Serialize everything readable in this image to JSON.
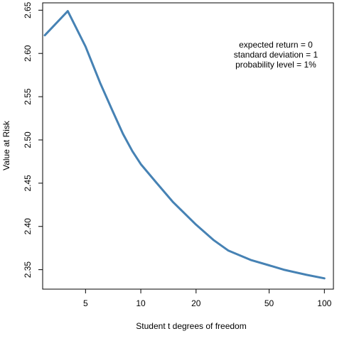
{
  "chart_data": {
    "type": "line",
    "title": "",
    "xlabel": "Student t degrees of freedom",
    "ylabel": "Value at Risk",
    "x_scale": "log",
    "xlim": [
      2.92,
      112
    ],
    "ylim": [
      2.3275,
      2.6585
    ],
    "x_ticks": [
      5,
      10,
      20,
      50,
      100
    ],
    "x_tick_labels": [
      "5",
      "10",
      "20",
      "50",
      "100"
    ],
    "y_ticks": [
      2.35,
      2.4,
      2.45,
      2.5,
      2.55,
      2.6,
      2.65
    ],
    "y_tick_labels": [
      "2.35",
      "2.40",
      "2.45",
      "2.50",
      "2.55",
      "2.60",
      "2.65"
    ],
    "grid": false,
    "line_color": "#4682b4",
    "series": [
      {
        "x": [
          3,
          4,
          5,
          6,
          7,
          8,
          9,
          10,
          12,
          15,
          20,
          25,
          30,
          40,
          50,
          60,
          80,
          100
        ],
        "y": [
          2.621,
          2.649,
          2.608,
          2.566,
          2.534,
          2.507,
          2.487,
          2.472,
          2.452,
          2.428,
          2.402,
          2.384,
          2.372,
          2.361,
          2.355,
          2.35,
          2.344,
          2.34
        ]
      }
    ],
    "annotations": [
      "expected return = 0",
      "standard deviation = 1",
      "probability level = 1%"
    ]
  }
}
